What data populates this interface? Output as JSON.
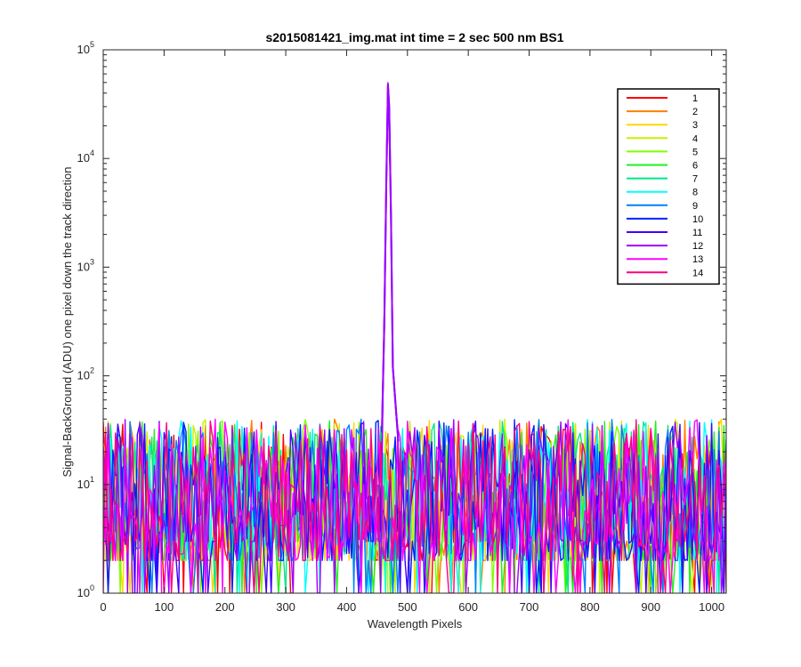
{
  "chart_data": {
    "type": "line",
    "title": "s2015081421_img.mat int time = 2 sec  500 nm BS1",
    "xlabel": "Wavelength Pixels",
    "ylabel": "Signal-BackGround (ADU) one pixel down the track direction",
    "xlim": [
      0,
      1024
    ],
    "ylim": [
      1,
      100000
    ],
    "yscale": "log",
    "grid": false,
    "legend_position": "top-right",
    "x_ticks": [
      0,
      100,
      200,
      300,
      400,
      500,
      600,
      700,
      800,
      900,
      1000
    ],
    "y_ticks": [
      {
        "value": 1,
        "base": "10",
        "exp": "0"
      },
      {
        "value": 10,
        "base": "10",
        "exp": "1"
      },
      {
        "value": 100,
        "base": "10",
        "exp": "2"
      },
      {
        "value": 1000,
        "base": "10",
        "exp": "3"
      },
      {
        "value": 10000,
        "base": "10",
        "exp": "4"
      },
      {
        "value": 100000,
        "base": "10",
        "exp": "5"
      }
    ],
    "noise_floor": {
      "x_range": [
        0,
        1024
      ],
      "typical_range": [
        2,
        40
      ],
      "median": 10
    },
    "peak": {
      "series": [
        "11",
        "12"
      ],
      "x": [
        458,
        462,
        465,
        468,
        470,
        473,
        476,
        480,
        485
      ],
      "y": [
        30,
        300,
        5000,
        48000,
        30000,
        3000,
        120,
        60,
        25
      ]
    },
    "series": [
      {
        "name": "1",
        "color": "#ff0000"
      },
      {
        "name": "2",
        "color": "#ff7f00"
      },
      {
        "name": "3",
        "color": "#ffd700"
      },
      {
        "name": "4",
        "color": "#c8f000"
      },
      {
        "name": "5",
        "color": "#80ff00"
      },
      {
        "name": "6",
        "color": "#1ef21e"
      },
      {
        "name": "7",
        "color": "#00e68a"
      },
      {
        "name": "8",
        "color": "#00ffff"
      },
      {
        "name": "9",
        "color": "#0080ff"
      },
      {
        "name": "10",
        "color": "#0020ff"
      },
      {
        "name": "11",
        "color": "#4000ff"
      },
      {
        "name": "12",
        "color": "#a000ff"
      },
      {
        "name": "13",
        "color": "#ff00ff"
      },
      {
        "name": "14",
        "color": "#ff0080"
      }
    ]
  }
}
